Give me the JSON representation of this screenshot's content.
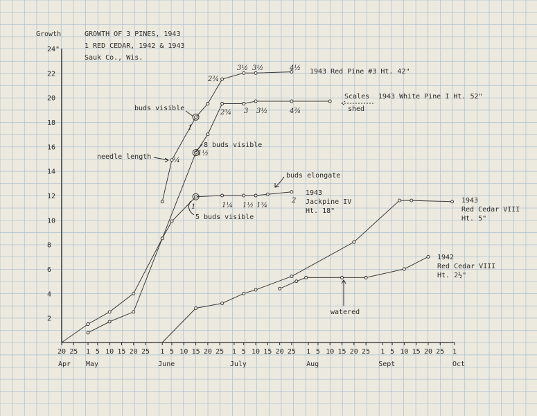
{
  "title_lines": [
    "GROWTH OF 3 PINES, 1943",
    "1 RED CEDAR, 1942 & 1943",
    "Sauk Co., Wis."
  ],
  "ylabel": "Growth",
  "chart_data": {
    "type": "line",
    "title": "GROWTH OF 3 PINES, 1943 / 1 RED CEDAR, 1942 & 1943 / Sauk Co., Wis.",
    "ylabel": "Growth",
    "xlabel": "",
    "x_is_date": true,
    "xlim": [
      "Apr 20",
      "Oct 1"
    ],
    "ylim": [
      0,
      24
    ],
    "y_ticks": [
      "2",
      "4",
      "6",
      "8",
      "10",
      "12",
      "14",
      "16",
      "18",
      "20",
      "22",
      "24\""
    ],
    "x_tick_labels": [
      "20",
      "25",
      "1",
      "5",
      "10",
      "15",
      "20",
      "25",
      "1",
      "5",
      "10",
      "15",
      "20",
      "25",
      "1",
      "5",
      "10",
      "15",
      "20",
      "25",
      "1",
      "5",
      "10",
      "15",
      "20",
      "25",
      "1",
      "5",
      "10",
      "15",
      "20",
      "25",
      "1"
    ],
    "month_labels": [
      "Apr",
      "May",
      "June",
      "July",
      "Aug",
      "Sept",
      "Oct"
    ],
    "grid": true,
    "series": [
      {
        "name": "1943 Red Pine #3 Ht. 42\"",
        "points": [
          {
            "x": "Jun 1",
            "y": 11.5
          },
          {
            "x": "Jun 5",
            "y": 14.9
          },
          {
            "x": "Jun 15",
            "y": 18.4
          },
          {
            "x": "Jun 20",
            "y": 19.5
          },
          {
            "x": "Jun 26",
            "y": 21.5
          },
          {
            "x": "Jul 5",
            "y": 22.0
          },
          {
            "x": "Jul 10",
            "y": 22.0
          },
          {
            "x": "Jul 25",
            "y": 22.1
          }
        ]
      },
      {
        "name": "1943 White Pine I Ht. 52\"",
        "points": [
          {
            "x": "Apr 20",
            "y": 0
          },
          {
            "x": "May 1",
            "y": 1.5
          },
          {
            "x": "May 10",
            "y": 2.5
          },
          {
            "x": "May 20",
            "y": 4.0
          },
          {
            "x": "Jun 1",
            "y": 8.5
          },
          {
            "x": "Jun 15",
            "y": 15.5
          },
          {
            "x": "Jun 20",
            "y": 17.0
          },
          {
            "x": "Jun 26",
            "y": 19.5
          },
          {
            "x": "Jul 5",
            "y": 19.5
          },
          {
            "x": "Jul 10",
            "y": 19.7
          },
          {
            "x": "Jul 25",
            "y": 19.7
          },
          {
            "x": "Aug 10",
            "y": 19.7
          }
        ]
      },
      {
        "name": "1943 Jackpine IV Ht. 18\"",
        "points": [
          {
            "x": "May 1",
            "y": 0.8
          },
          {
            "x": "May 10",
            "y": 1.7
          },
          {
            "x": "May 20",
            "y": 2.5
          },
          {
            "x": "Jun 1",
            "y": 8.5
          },
          {
            "x": "Jun 5",
            "y": 9.9
          },
          {
            "x": "Jun 15",
            "y": 11.9
          },
          {
            "x": "Jun 26",
            "y": 12.0
          },
          {
            "x": "Jul 5",
            "y": 12.0
          },
          {
            "x": "Jul 10",
            "y": 12.0
          },
          {
            "x": "Jul 15",
            "y": 12.1
          },
          {
            "x": "Jul 25",
            "y": 12.3
          }
        ]
      },
      {
        "name": "1943 Red Cedar VIII Ht. 5\"",
        "points": [
          {
            "x": "Jun 1",
            "y": 0
          },
          {
            "x": "Jun 15",
            "y": 2.8
          },
          {
            "x": "Jun 26",
            "y": 3.2
          },
          {
            "x": "Jul 5",
            "y": 4.0
          },
          {
            "x": "Jul 10",
            "y": 4.3
          },
          {
            "x": "Jul 25",
            "y": 5.4
          },
          {
            "x": "Aug 20",
            "y": 8.2
          },
          {
            "x": "Sep 8",
            "y": 11.6
          },
          {
            "x": "Sep 13",
            "y": 11.6
          },
          {
            "x": "Sep 30",
            "y": 11.5
          }
        ]
      },
      {
        "name": "1942 Red Cedar VIII Ht. 2½\"",
        "points": [
          {
            "x": "Jul 20",
            "y": 4.4
          },
          {
            "x": "Jul 27",
            "y": 5.0
          },
          {
            "x": "Jul 31",
            "y": 5.3
          },
          {
            "x": "Aug 15",
            "y": 5.3
          },
          {
            "x": "Aug 25",
            "y": 5.3
          },
          {
            "x": "Sep 10",
            "y": 6.0
          },
          {
            "x": "Sep 20",
            "y": 7.0
          }
        ]
      }
    ]
  },
  "series_labels": {
    "red_pine": "1943 Red Pine #3  Ht. 42\"",
    "white_pine": "1943 White Pine I  Ht. 52\"",
    "jackpine": [
      "1943",
      "Jackpine IV",
      "Ht. 18\""
    ],
    "cedar_1943": [
      "1943",
      "Red Cedar VIII",
      "Ht. 5\""
    ],
    "cedar_1942": [
      "1942",
      "Red Cedar VIII",
      "Ht. 2½\""
    ]
  },
  "annotations": {
    "buds_visible": "buds visible",
    "eight_buds_visible": "8 buds visible",
    "needle_length": "needle length",
    "buds_elongate": "buds elongate",
    "five_buds_visible": "5 buds visible",
    "scales": "Scales",
    "shed": "shed",
    "watered": "watered"
  },
  "needle_labels": {
    "red_pine": [
      "1",
      "2¾",
      "3½",
      "3½",
      "4½"
    ],
    "white_pine": [
      "¼",
      "1½",
      "2¾",
      "3",
      "3½",
      "4¾"
    ],
    "jackpine": [
      "1",
      "1¼",
      "1½",
      "1¾",
      "2"
    ]
  }
}
